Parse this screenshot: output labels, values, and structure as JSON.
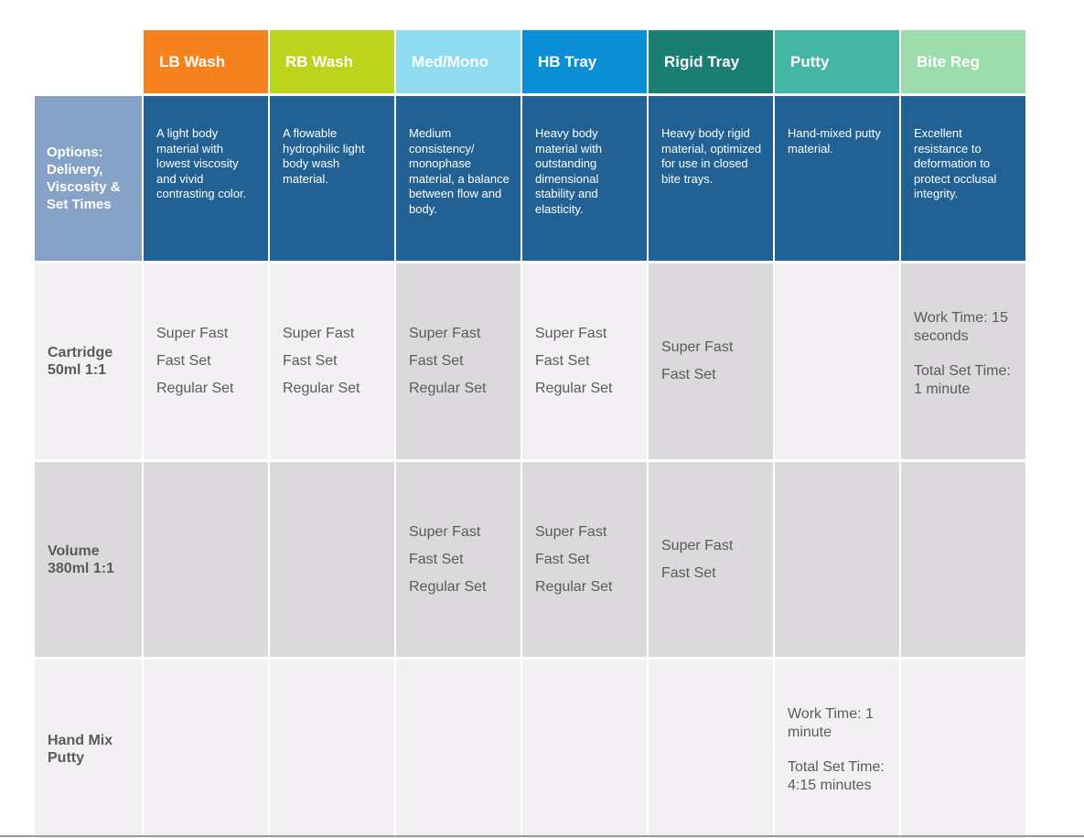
{
  "columns": [
    {
      "label": "LB Wash",
      "color": "#f5821f",
      "description": "A light body material with lowest viscosity and vivid contrasting color."
    },
    {
      "label": "RB Wash",
      "color": "#bcd41b",
      "description": "A flowable hydrophilic light body wash material."
    },
    {
      "label": "Med/Mono",
      "color": "#8fdbf0",
      "description": "Medium consistency/ monophase material, a balance between flow and body."
    },
    {
      "label": "HB Tray",
      "color": "#0a8fd6",
      "description": "Heavy body material with outstanding dimensional stability and elasticity."
    },
    {
      "label": "Rigid Tray",
      "color": "#1a7f70",
      "description": "Heavy body rigid material, optimized for use in closed bite trays."
    },
    {
      "label": "Putty",
      "color": "#43b7a4",
      "description": "Hand-mixed putty material."
    },
    {
      "label": "Bite Reg",
      "color": "#9bdcaa",
      "description": "Excellent resistance to deformation to protect occlusal integrity."
    }
  ],
  "options_header": "Options: Delivery, Viscosity & Set Times",
  "rows": [
    {
      "label": "Cartridge 50ml 1:1",
      "cells": [
        [
          "Super Fast",
          "Fast Set",
          "Regular Set"
        ],
        [
          "Super Fast",
          "Fast Set",
          "Regular Set"
        ],
        [
          "Super Fast",
          "Fast Set",
          "Regular Set"
        ],
        [
          "Super Fast",
          "Fast Set",
          "Regular Set"
        ],
        [
          "Super Fast",
          "Fast Set"
        ],
        [],
        {
          "work": "Work Time: 15 seconds",
          "total": "Total Set Time:\n1 minute"
        }
      ]
    },
    {
      "label": "Volume 380ml 1:1",
      "cells": [
        [],
        [],
        [
          "Super Fast",
          "Fast Set",
          "Regular Set"
        ],
        [
          "Super Fast",
          "Fast Set",
          "Regular Set"
        ],
        [
          "Super Fast",
          "Fast Set"
        ],
        [],
        []
      ]
    },
    {
      "label": "Hand Mix Putty",
      "cells": [
        [],
        [],
        [],
        [],
        [],
        {
          "work": "Work Time: 1 minute",
          "total": "Total Set Time:\n4:15 minutes"
        },
        []
      ]
    }
  ]
}
